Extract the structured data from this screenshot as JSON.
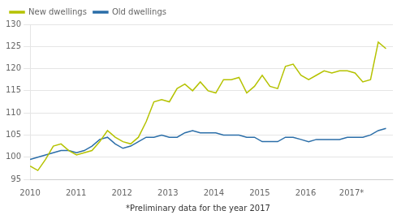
{
  "chart_data": {
    "type": "line",
    "annotations": [
      "*Preliminary data for the year 2017"
    ],
    "x": [
      2010,
      2010.1685,
      2010.337,
      2010.5054,
      2010.6739,
      2010.8424,
      2011.0109,
      2011.1793,
      2011.3478,
      2011.5163,
      2011.6848,
      2011.8533,
      2012.0217,
      2012.1902,
      2012.3587,
      2012.5272,
      2012.6957,
      2012.8641,
      2013.0326,
      2013.2011,
      2013.3696,
      2013.538,
      2013.7065,
      2013.875,
      2014.0435,
      2014.212,
      2014.3804,
      2014.5489,
      2014.7174,
      2014.8859,
      2015.0543,
      2015.2228,
      2015.3913,
      2015.5598,
      2015.7283,
      2015.8967,
      2016.0652,
      2016.2337,
      2016.4022,
      2016.5707,
      2016.7391,
      2016.9076,
      2017.0761,
      2017.2446,
      2017.413,
      2017.5815,
      2017.75
    ],
    "series": [
      {
        "name": "New dwellings",
        "color": "#b5c200",
        "values": [
          98.0,
          97.0,
          99.5,
          102.5,
          103.0,
          101.5,
          100.5,
          101.0,
          101.5,
          103.5,
          106.0,
          104.5,
          103.5,
          103.0,
          104.5,
          108.0,
          112.5,
          113.0,
          112.5,
          115.5,
          116.5,
          115.0,
          117.0,
          115.0,
          114.5,
          117.5,
          117.5,
          118.0,
          114.5,
          116.0,
          118.5,
          116.0,
          115.5,
          120.5,
          121.0,
          118.5,
          117.5,
          118.5,
          119.5,
          119.0,
          119.5,
          119.5,
          119.0,
          117.0,
          117.5,
          126.0,
          124.5
        ]
      },
      {
        "name": "Old dwellings",
        "color": "#2b6ea8",
        "values": [
          99.5,
          100.0,
          100.5,
          101.0,
          101.5,
          101.5,
          101.0,
          101.5,
          102.5,
          104.0,
          104.5,
          103.0,
          102.0,
          102.5,
          103.5,
          104.5,
          104.5,
          105.0,
          104.5,
          104.5,
          105.5,
          106.0,
          105.5,
          105.5,
          105.5,
          105.0,
          105.0,
          105.0,
          104.5,
          104.5,
          103.5,
          103.5,
          103.5,
          104.5,
          104.5,
          104.0,
          103.5,
          104.0,
          104.0,
          104.0,
          104.0,
          104.5,
          104.5,
          104.5,
          105.0,
          106.0,
          106.5
        ]
      }
    ],
    "xlim": [
      2010,
      2017.9
    ],
    "xticks": [
      2010,
      2011,
      2012,
      2013,
      2014,
      2015,
      2016,
      {
        "value": 2017,
        "label": "2017*"
      }
    ],
    "ylim": [
      95,
      130
    ],
    "yticks": [
      95,
      100,
      105,
      110,
      115,
      120,
      125,
      130
    ],
    "grid": "y",
    "legend": "upper left"
  }
}
